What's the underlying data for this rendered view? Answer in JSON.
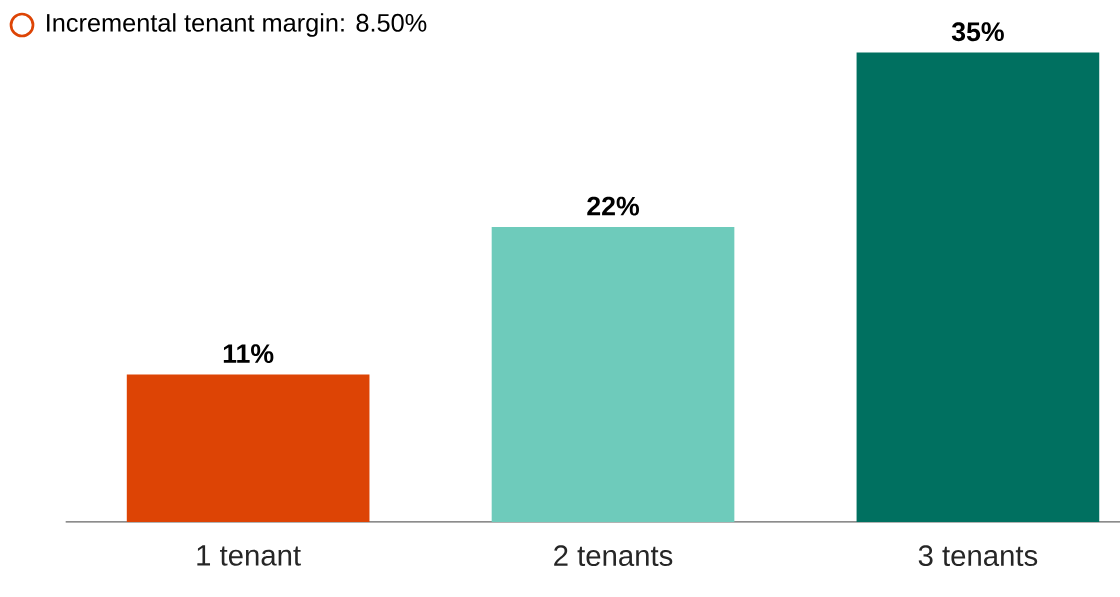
{
  "chart_data": {
    "type": "bar",
    "categories": [
      "1 tenant",
      "2 tenants",
      "3 tenants"
    ],
    "values": [
      11,
      22,
      35
    ],
    "colors": [
      "#dd4405",
      "#6ecbbb",
      "#007060"
    ],
    "value_labels": [
      "11%",
      "22%",
      "35%"
    ],
    "annotations": [
      "Incremental tenant margin: 8.50%"
    ]
  }
}
